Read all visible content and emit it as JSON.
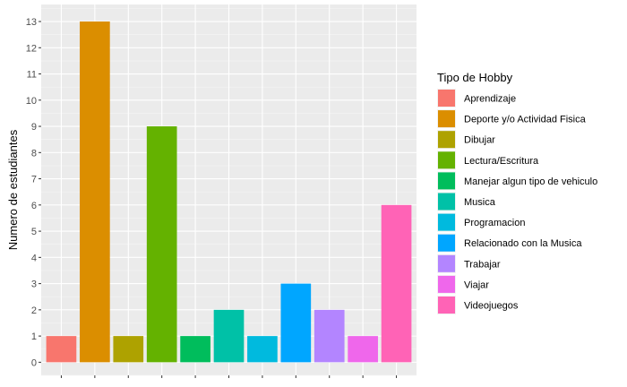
{
  "chart_data": {
    "type": "bar",
    "categories": [
      "Aprendizaje",
      "Deporte y/o Actividad Fisica",
      "Dibujar",
      "Lectura/Escritura",
      "Manejar algun tipo de vehiculo",
      "Musica",
      "Programacion",
      "Relacionado con la Musica",
      "Trabajar",
      "Viajar",
      "Videojuegos"
    ],
    "values": [
      1,
      13,
      1,
      9,
      1,
      2,
      1,
      3,
      2,
      1,
      6
    ],
    "colors": [
      "#F8766D",
      "#DB8E00",
      "#AEA200",
      "#64B200",
      "#00BD5C",
      "#00C1A7",
      "#00BADE",
      "#00A6FF",
      "#B385FF",
      "#EF67EB",
      "#FF63B6"
    ],
    "ylabel": "Numero de estudiantes",
    "xlabel": "",
    "yticks": [
      0,
      1,
      2,
      3,
      4,
      5,
      6,
      7,
      8,
      9,
      10,
      11,
      12,
      13
    ],
    "ylim": [
      -0.5,
      13.65
    ],
    "legend": {
      "title": "Tipo de Hobby",
      "position": "right"
    },
    "grid": true,
    "panel_background": "#EBEBEB"
  }
}
